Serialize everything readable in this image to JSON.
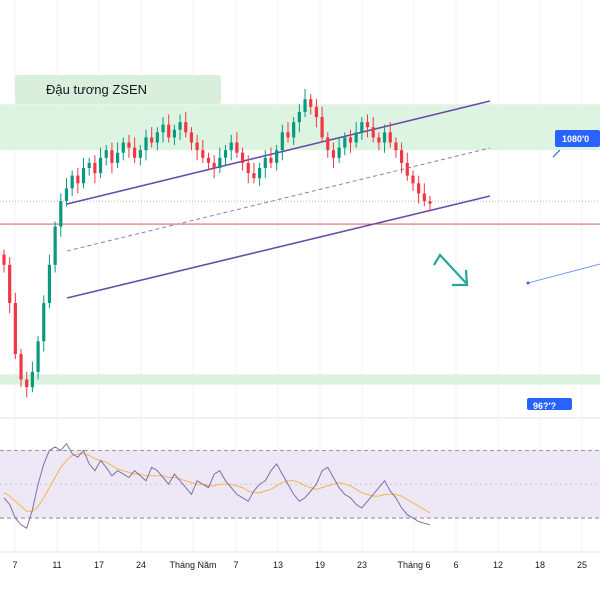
{
  "chart_data": {
    "type": "candlestick",
    "title": "Đậu tương ZSEN",
    "price_labels": [
      "1080'0",
      "96?'?"
    ],
    "x_tick_labels": [
      "7",
      "11",
      "17",
      "24",
      "Tháng Năm",
      "7",
      "13",
      "19",
      "23",
      "Tháng 6",
      "6",
      "12",
      "18",
      "25"
    ],
    "ylim": [
      955,
      1110
    ],
    "levels": {
      "resistance_zone": [
        1055,
        1073
      ],
      "support_zone": [
        963,
        967
      ],
      "target_line": 1026,
      "dotted_level": 1035
    },
    "close_series": [
      1010,
      995,
      975,
      965,
      962,
      968,
      980,
      995,
      1010,
      1025,
      1035,
      1040,
      1045,
      1042,
      1048,
      1050,
      1046,
      1052,
      1055,
      1050,
      1054,
      1058,
      1056,
      1052,
      1055,
      1060,
      1058,
      1062,
      1065,
      1060,
      1063,
      1066,
      1062,
      1058,
      1055,
      1052,
      1050,
      1048,
      1052,
      1055,
      1058,
      1054,
      1050,
      1046,
      1044,
      1048,
      1052,
      1050,
      1055,
      1062,
      1060,
      1066,
      1070,
      1075,
      1072,
      1068,
      1060,
      1055,
      1052,
      1056,
      1060,
      1058,
      1062,
      1066,
      1064,
      1060,
      1058,
      1062,
      1058,
      1055,
      1050,
      1045,
      1042,
      1038,
      1035,
      1034
    ],
    "candle_colors": {
      "up": "#089981",
      "down": "#f23645"
    },
    "channel_color": "#6a4ca8",
    "arrow_color": "#26a69a",
    "rsi": {
      "type": "line",
      "color": "#7e6fa8",
      "ma_color": "#f2b84b",
      "band_fill": "#ede7f6",
      "ylim": [
        20,
        85
      ],
      "upper": 70,
      "middle": 50,
      "lower": 30,
      "values": [
        42,
        38,
        30,
        26,
        24,
        35,
        50,
        62,
        70,
        72,
        70,
        74,
        68,
        66,
        70,
        62,
        58,
        64,
        60,
        55,
        58,
        56,
        54,
        58,
        55,
        52,
        60,
        58,
        54,
        50,
        56,
        52,
        48,
        44,
        52,
        50,
        48,
        56,
        58,
        52,
        48,
        44,
        42,
        40,
        46,
        50,
        52,
        58,
        62,
        56,
        50,
        44,
        40,
        42,
        46,
        50,
        58,
        60,
        54,
        48,
        44,
        42,
        38,
        36,
        40,
        44,
        48,
        52,
        46,
        42,
        36,
        32,
        30,
        28,
        27,
        26
      ],
      "ma_values": [
        45,
        43,
        40,
        37,
        34,
        34,
        37,
        42,
        48,
        54,
        60,
        64,
        67,
        68,
        68,
        67,
        65,
        64,
        63,
        61,
        59,
        58,
        57,
        56,
        56,
        55,
        55,
        55,
        55,
        54,
        54,
        53,
        52,
        51,
        50,
        50,
        49,
        49,
        50,
        50,
        50,
        49,
        48,
        46,
        45,
        45,
        46,
        47,
        49,
        51,
        52,
        52,
        51,
        49,
        48,
        47,
        48,
        49,
        50,
        51,
        50,
        49,
        47,
        45,
        44,
        43,
        43,
        44,
        44,
        44,
        43,
        41,
        39,
        37,
        35,
        33
      ]
    }
  }
}
